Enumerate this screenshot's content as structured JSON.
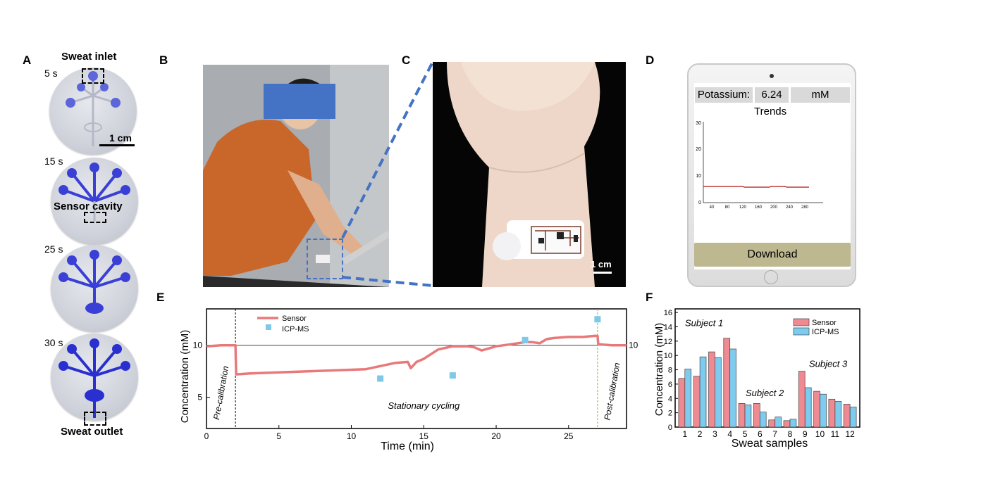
{
  "panels": {
    "a": "A",
    "b": "B",
    "c": "C",
    "d": "D",
    "e": "E",
    "f": "F"
  },
  "panel_a": {
    "top_label": "Sweat inlet",
    "bottom_label": "Sweat outlet",
    "cavity_label": "Sensor cavity",
    "scale_label": "1 cm",
    "times": [
      "5 s",
      "15 s",
      "25 s",
      "30 s"
    ],
    "fill_color": "#3a3fd6"
  },
  "panel_c": {
    "scale_label": "1 cm"
  },
  "panel_d": {
    "analyte_label": "Potassium:",
    "value": "6.24",
    "unit": "mM",
    "trend_title": "Trends",
    "button_label": "Download",
    "y_ticks": [
      "30",
      "20",
      "10",
      "0"
    ],
    "x_ticks": [
      "40",
      "80",
      "120",
      "160",
      "200",
      "240",
      "280"
    ]
  },
  "chart_data": [
    {
      "type": "line",
      "panel": "E",
      "xlabel": "Time (min)",
      "ylabel": "Concentration (mM)",
      "xlim": [
        0,
        29
      ],
      "ylim": [
        2,
        13.5
      ],
      "x_ticks": [
        "0",
        "5",
        "10",
        "15",
        "20",
        "25"
      ],
      "y_ticks": [
        "5",
        "10"
      ],
      "right_marker": "10",
      "reference_line": 10,
      "annotations": [
        "Pre-calibration",
        "Stationary cycling",
        "Post-calibration"
      ],
      "phase_boundaries": [
        2,
        27
      ],
      "series": [
        {
          "name": "Sensor",
          "color": "#e8797a",
          "x": [
            0,
            1,
            2,
            2.05,
            3,
            5,
            7,
            9,
            11,
            12,
            13,
            13.9,
            14.1,
            14.5,
            15,
            16,
            17,
            18,
            18.5,
            19,
            19.5,
            20,
            21,
            22,
            22.5,
            23,
            23.5,
            24,
            25,
            26,
            26.8,
            27,
            27.05,
            28,
            29
          ],
          "y": [
            9.9,
            10.0,
            10.0,
            7.2,
            7.3,
            7.4,
            7.5,
            7.6,
            7.7,
            8.0,
            8.3,
            8.4,
            7.8,
            8.4,
            8.7,
            9.6,
            9.9,
            9.9,
            9.8,
            9.5,
            9.7,
            9.9,
            10.1,
            10.3,
            10.3,
            10.2,
            10.6,
            10.7,
            10.8,
            10.8,
            10.9,
            10.9,
            10.1,
            10.0,
            10.0
          ]
        },
        {
          "name": "ICP-MS",
          "color": "#7ec8e8",
          "type": "scatter",
          "x": [
            12,
            17,
            22,
            27
          ],
          "y": [
            6.8,
            7.1,
            10.5,
            12.5
          ]
        }
      ]
    },
    {
      "type": "bar",
      "panel": "F",
      "xlabel": "Sweat samples",
      "ylabel": "Concentration (mM)",
      "ylim": [
        0,
        16.5
      ],
      "y_ticks": [
        "0",
        "2",
        "4",
        "6",
        "8",
        "10",
        "12",
        "14",
        "16"
      ],
      "categories": [
        "1",
        "2",
        "3",
        "4",
        "5",
        "6",
        "7",
        "8",
        "9",
        "10",
        "11",
        "12"
      ],
      "annotations": [
        "Subject 1",
        "Subject 2",
        "Subject 3"
      ],
      "series": [
        {
          "name": "Sensor",
          "color": "#f08a92",
          "values": [
            6.8,
            7.1,
            10.5,
            12.4,
            3.3,
            3.3,
            1.0,
            0.9,
            7.8,
            5.0,
            3.9,
            3.2
          ]
        },
        {
          "name": "ICP-MS",
          "color": "#7ecbf0",
          "values": [
            8.1,
            9.8,
            9.7,
            10.9,
            3.1,
            2.1,
            1.4,
            1.1,
            5.5,
            4.6,
            3.6,
            2.8
          ]
        }
      ]
    }
  ]
}
